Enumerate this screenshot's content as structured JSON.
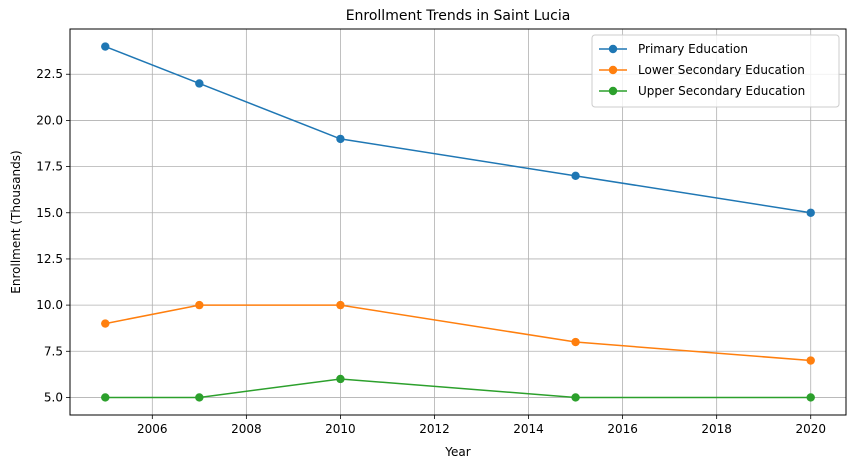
{
  "chart_data": {
    "type": "line",
    "title": "Enrollment Trends in Saint Lucia",
    "xlabel": "Year",
    "ylabel": "Enrollment (Thousands)",
    "x": [
      2005,
      2007,
      2010,
      2015,
      2020
    ],
    "xlim": [
      2004.25,
      2020.75
    ],
    "ylim": [
      4.05,
      24.95
    ],
    "xticks": [
      2006,
      2008,
      2010,
      2012,
      2014,
      2016,
      2018,
      2020
    ],
    "yticks": [
      5.0,
      7.5,
      10.0,
      12.5,
      15.0,
      17.5,
      20.0,
      22.5
    ],
    "xtick_labels": [
      "2006",
      "2008",
      "2010",
      "2012",
      "2014",
      "2016",
      "2018",
      "2020"
    ],
    "ytick_labels": [
      "5.0",
      "7.5",
      "10.0",
      "12.5",
      "15.0",
      "17.5",
      "20.0",
      "22.5"
    ],
    "grid": true,
    "legend_position": "top-right",
    "series": [
      {
        "name": "Primary Education",
        "color": "#1f77b4",
        "values": [
          24,
          22,
          19,
          17,
          15
        ]
      },
      {
        "name": "Lower Secondary Education",
        "color": "#ff7f0e",
        "values": [
          9,
          10,
          10,
          8,
          7
        ]
      },
      {
        "name": "Upper Secondary Education",
        "color": "#2ca02c",
        "values": [
          5,
          5,
          6,
          5,
          5
        ]
      }
    ]
  }
}
